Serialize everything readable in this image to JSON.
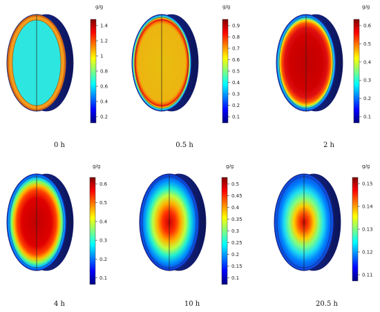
{
  "colormap": [
    "#00007f",
    "#0000ff",
    "#007fff",
    "#00ffff",
    "#7fff7f",
    "#ffff00",
    "#ff7f00",
    "#ff0000",
    "#7f0000"
  ],
  "edge_color": "#1a1f6e",
  "panels": [
    {
      "caption": "0 h",
      "unit": "g/g",
      "ticks": [
        "1.4",
        "1.2",
        "1",
        "0.8",
        "0.6",
        "0.4",
        "0.2"
      ],
      "style": "ring",
      "core_color": "#2ee6e0",
      "ring_color": "#f39c1d",
      "rim_color": "#d66a12"
    },
    {
      "caption": "0.5 h",
      "unit": "g/g",
      "ticks": [
        "0.9",
        "0.8",
        "0.7",
        "0.6",
        "0.5",
        "0.4",
        "0.3",
        "0.2",
        "0.1"
      ],
      "style": "boundary",
      "core_color": "#e8be10",
      "stops": [
        {
          "offset": 0.0,
          "color": "#e8be10"
        },
        {
          "offset": 0.8,
          "color": "#ecb410"
        },
        {
          "offset": 0.86,
          "color": "#ff6a00"
        },
        {
          "offset": 0.89,
          "color": "#e01010"
        },
        {
          "offset": 0.93,
          "color": "#ffe000"
        },
        {
          "offset": 0.96,
          "color": "#20e0e0"
        },
        {
          "offset": 1.0,
          "color": "#0038ff"
        }
      ]
    },
    {
      "caption": "2 h",
      "unit": "g/g",
      "ticks": [
        "0.6",
        "0.5",
        "0.4",
        "0.3",
        "0.2",
        "0.1"
      ],
      "style": "boundary",
      "core_color": "#c80000",
      "stops": [
        {
          "offset": 0.0,
          "color": "#c00000"
        },
        {
          "offset": 0.55,
          "color": "#d00000"
        },
        {
          "offset": 0.72,
          "color": "#e01010"
        },
        {
          "offset": 0.82,
          "color": "#ff5a00"
        },
        {
          "offset": 0.88,
          "color": "#ffe000"
        },
        {
          "offset": 0.93,
          "color": "#20e0e0"
        },
        {
          "offset": 1.0,
          "color": "#0030ff"
        }
      ]
    },
    {
      "caption": "4 h",
      "unit": "g/g",
      "ticks": [
        "0.6",
        "0.5",
        "0.4",
        "0.3",
        "0.2",
        "0.1"
      ],
      "style": "boundary",
      "core_color": "#cc0000",
      "stops": [
        {
          "offset": 0.0,
          "color": "#c00000"
        },
        {
          "offset": 0.5,
          "color": "#e00000"
        },
        {
          "offset": 0.66,
          "color": "#ff4000"
        },
        {
          "offset": 0.76,
          "color": "#ffc000"
        },
        {
          "offset": 0.84,
          "color": "#80ff60"
        },
        {
          "offset": 0.91,
          "color": "#10d0f0"
        },
        {
          "offset": 1.0,
          "color": "#0038ff"
        }
      ]
    },
    {
      "caption": "10 h",
      "unit": "g/g",
      "ticks": [
        "0.5",
        "0.45",
        "0.4",
        "0.35",
        "0.3",
        "0.25",
        "0.2",
        "0.15",
        "0.1"
      ],
      "style": "center",
      "core_color": "#d00000",
      "stops": [
        {
          "offset": 0.0,
          "color": "#c80000"
        },
        {
          "offset": 0.22,
          "color": "#ff3000"
        },
        {
          "offset": 0.4,
          "color": "#ffb000"
        },
        {
          "offset": 0.55,
          "color": "#c0ff40"
        },
        {
          "offset": 0.7,
          "color": "#20f0d0"
        },
        {
          "offset": 0.85,
          "color": "#0090ff"
        },
        {
          "offset": 1.0,
          "color": "#1030d0"
        }
      ]
    },
    {
      "caption": "20.5 h",
      "unit": "g/g",
      "ticks": [
        "0.15",
        "0.14",
        "0.13",
        "0.12",
        "0.11"
      ],
      "style": "center",
      "core_color": "#d00000",
      "stops": [
        {
          "offset": 0.0,
          "color": "#d00000"
        },
        {
          "offset": 0.18,
          "color": "#ff5000"
        },
        {
          "offset": 0.34,
          "color": "#ffd000"
        },
        {
          "offset": 0.5,
          "color": "#80ff80"
        },
        {
          "offset": 0.66,
          "color": "#20e0f0"
        },
        {
          "offset": 0.82,
          "color": "#0080ff"
        },
        {
          "offset": 1.0,
          "color": "#1040d8"
        }
      ]
    }
  ]
}
